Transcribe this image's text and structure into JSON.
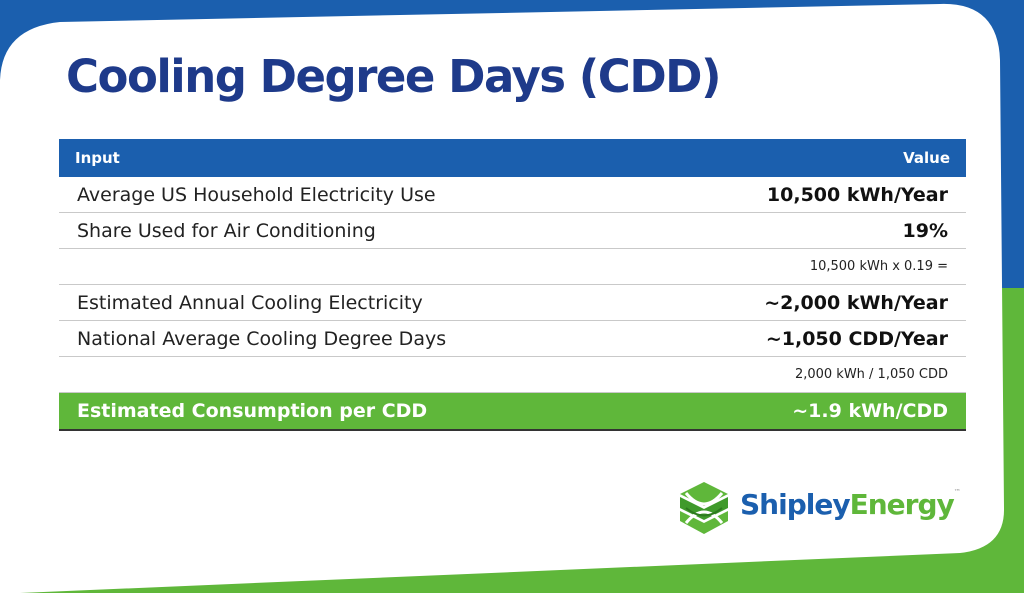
{
  "title": "Cooling Degree Days (CDD)",
  "table": {
    "headers": {
      "input": "Input",
      "value": "Value"
    },
    "rows": [
      {
        "label": "Average US Household Electricity Use",
        "value": "10,500 kWh/Year"
      },
      {
        "label": "Share Used for Air Conditioning",
        "value": "19%"
      },
      {
        "label": "",
        "value": "10,500 kWh x 0.19 ="
      },
      {
        "label": "Estimated Annual Cooling Electricity",
        "value": "~2,000 kWh/Year"
      },
      {
        "label": "National Average Cooling Degree Days",
        "value": "~1,050 CDD/Year"
      },
      {
        "label": "",
        "value": "2,000 kWh / 1,050 CDD"
      },
      {
        "label": "Estimated Consumption per CDD",
        "value": "~1.9 kWh/CDD"
      }
    ]
  },
  "logo": {
    "name_part1": "Shipley",
    "name_part2": "Energy",
    "trademark": "™"
  },
  "colors": {
    "blue": "#1b5fae",
    "green": "#5fb73a",
    "title": "#1e3a8a"
  }
}
